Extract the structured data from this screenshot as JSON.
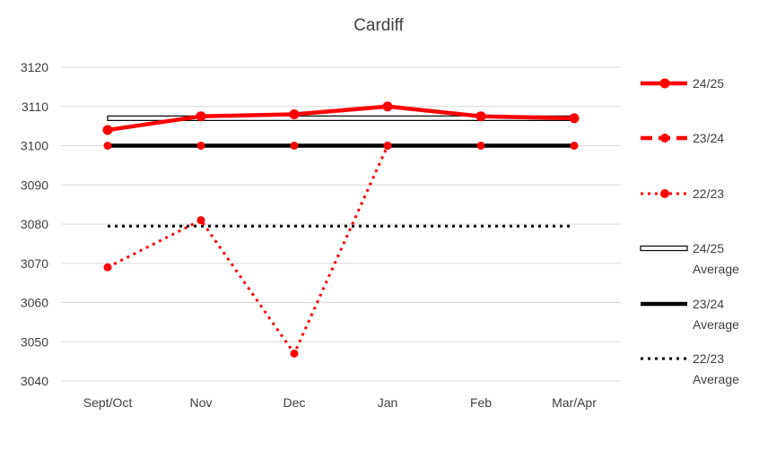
{
  "chart_data": {
    "type": "line",
    "title": "Cardiff",
    "xlabel": "",
    "ylabel": "",
    "categories": [
      "Sept/Oct",
      "Nov",
      "Dec",
      "Jan",
      "Feb",
      "Mar/Apr"
    ],
    "ylim": [
      3040,
      3120
    ],
    "yticks": [
      "3040",
      "3050",
      "3060",
      "3070",
      "3080",
      "3090",
      "3100",
      "3110",
      "3120"
    ],
    "grid": true,
    "legend": "right",
    "series": [
      {
        "name": "24/25",
        "values": [
          3104,
          3107.5,
          3108,
          3110,
          3107.5,
          3107
        ],
        "color": "#ff0000",
        "style": "solid-marker"
      },
      {
        "name": "23/24",
        "values": [
          3100,
          3100,
          3100,
          3100,
          3100,
          3100
        ],
        "color": "#ff0000",
        "style": "dash-marker"
      },
      {
        "name": "22/23",
        "values": [
          3069,
          3081,
          3047,
          3100,
          null,
          null
        ],
        "color": "#ff0000",
        "style": "dotted-marker"
      },
      {
        "name": "24/25 Average",
        "values": [
          3107,
          3107,
          3107,
          3107,
          3107,
          3107
        ],
        "color": "#000000",
        "style": "hollow"
      },
      {
        "name": "23/24 Average",
        "values": [
          3100,
          3100,
          3100,
          3100,
          3100,
          3100
        ],
        "color": "#000000",
        "style": "thick"
      },
      {
        "name": "22/23 Average",
        "values": [
          3079.5,
          3079.5,
          3079.5,
          3079.5,
          3079.5,
          3079.5
        ],
        "color": "#000000",
        "style": "dotted"
      }
    ],
    "legend_lines": [
      [
        "24/25"
      ],
      [
        "23/24"
      ],
      [
        "22/23"
      ],
      [
        "24/25",
        "Average"
      ],
      [
        "23/24",
        "Average"
      ],
      [
        "22/23",
        "Average"
      ]
    ]
  }
}
